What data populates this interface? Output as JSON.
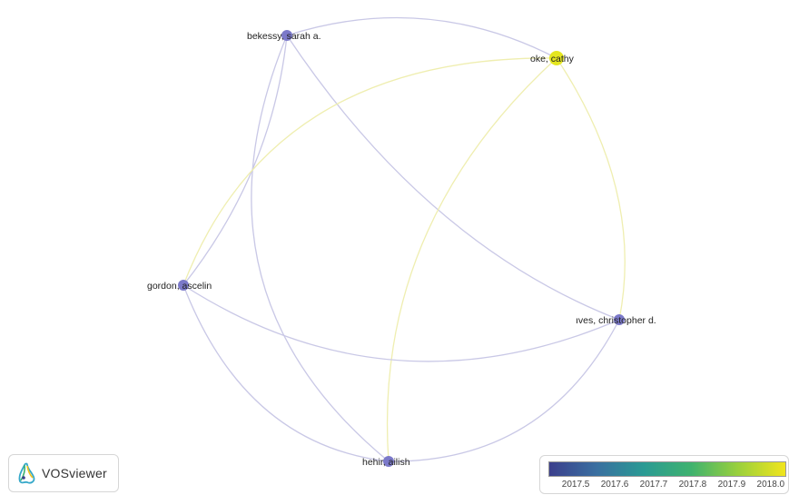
{
  "network": {
    "nodes": [
      {
        "id": "bekessy",
        "label": "bekessy, sarah a.",
        "year": 2017.45,
        "color": "#7b79c9"
      },
      {
        "id": "oke",
        "label": "oke, cathy",
        "year": 2018.0,
        "color": "#e4e61f"
      },
      {
        "id": "gordon",
        "label": "gordon, ascelin",
        "year": 2017.45,
        "color": "#7b79c9"
      },
      {
        "id": "ives",
        "label": "ıves, christopher d.",
        "year": 2017.45,
        "color": "#7b79c9"
      },
      {
        "id": "hehir",
        "label": "hehir, ailish",
        "year": 2017.45,
        "color": "#7b79c9"
      }
    ],
    "links": [
      {
        "source": "bekessy",
        "target": "oke",
        "color": "#c9c8e6"
      },
      {
        "source": "bekessy",
        "target": "gordon",
        "color": "#c9c8e6"
      },
      {
        "source": "bekessy",
        "target": "ives",
        "color": "#c9c8e6"
      },
      {
        "source": "bekessy",
        "target": "hehir",
        "color": "#c9c8e6"
      },
      {
        "source": "oke",
        "target": "gordon",
        "color": "#efeeb0"
      },
      {
        "source": "oke",
        "target": "ives",
        "color": "#efeeb0"
      },
      {
        "source": "oke",
        "target": "hehir",
        "color": "#efeeb0"
      },
      {
        "source": "gordon",
        "target": "ives",
        "color": "#c9c8e6"
      },
      {
        "source": "gordon",
        "target": "hehir",
        "color": "#c9c8e6"
      },
      {
        "source": "ives",
        "target": "hehir",
        "color": "#c9c8e6"
      }
    ]
  },
  "logo": {
    "text": "VOSviewer",
    "icon": "vosviewer-logo-icon"
  },
  "legend": {
    "ticks": [
      "2017.5",
      "2017.6",
      "2017.7",
      "2017.8",
      "2017.9",
      "2018.0"
    ],
    "range": [
      2017.43,
      2018.04
    ],
    "colors": [
      "#3b3f8c",
      "#3a6fa0",
      "#2a9a94",
      "#3fb26f",
      "#9ad03c",
      "#f1e51d"
    ]
  }
}
